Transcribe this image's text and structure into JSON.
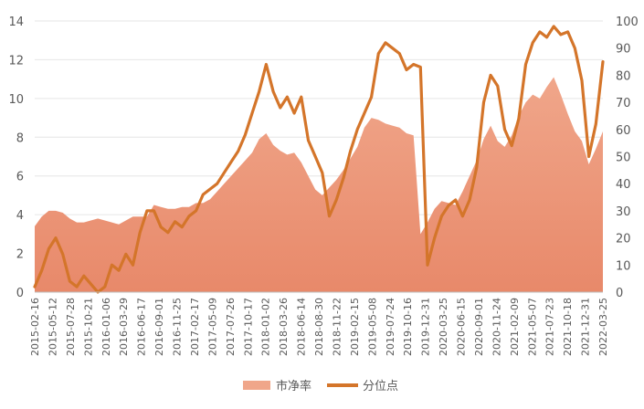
{
  "chart_data": {
    "type": "area",
    "title": "",
    "xlabel": "",
    "ylabel": "",
    "x_ticks": [
      "2015-02-16",
      "2015-05-12",
      "2015-07-28",
      "2015-10-21",
      "2016-01-06",
      "2016-03-29",
      "2016-06-17",
      "2016-09-01",
      "2016-11-25",
      "2017-02-17",
      "2017-05-09",
      "2017-07-26",
      "2017-10-17",
      "2018-01-02",
      "2018-03-26",
      "2018-06-14",
      "2018-08-30",
      "2018-11-22",
      "2019-02-15",
      "2019-05-08",
      "2019-07-24",
      "2019-10-16",
      "2019-12-31",
      "2020-03-25",
      "2020-06-15",
      "2020-09-01",
      "2020-11-24",
      "2021-02-09",
      "2021-05-07",
      "2021-07-23",
      "2021-10-18",
      "2021-12-31",
      "2022-03-25"
    ],
    "y_left": {
      "ticks": [
        0,
        2,
        4,
        6,
        8,
        10,
        12,
        14
      ],
      "lim": [
        0,
        14
      ]
    },
    "y_right": {
      "ticks": [
        0,
        10,
        20,
        30,
        40,
        50,
        60,
        70,
        80,
        90,
        100
      ],
      "lim": [
        0,
        100
      ]
    },
    "grid": true,
    "legend_position": "bottom",
    "series": [
      {
        "name": "市净率",
        "kind": "area",
        "axis": "left",
        "color": "#F0A68A",
        "values": [
          3.4,
          3.9,
          4.2,
          4.2,
          4.1,
          3.8,
          3.6,
          3.6,
          3.7,
          3.8,
          3.7,
          3.6,
          3.5,
          3.7,
          3.9,
          3.9,
          3.9,
          4.5,
          4.4,
          4.3,
          4.3,
          4.4,
          4.4,
          4.6,
          4.6,
          4.8,
          5.2,
          5.6,
          6.0,
          6.4,
          6.8,
          7.2,
          7.9,
          8.2,
          7.6,
          7.3,
          7.1,
          7.2,
          6.7,
          6.0,
          5.3,
          5.0,
          5.4,
          5.8,
          6.3,
          6.9,
          7.5,
          8.5,
          9.0,
          8.9,
          8.7,
          8.6,
          8.5,
          8.2,
          8.1,
          3.0,
          3.6,
          4.3,
          4.7,
          4.6,
          4.5,
          5.2,
          6.0,
          6.8,
          7.9,
          8.6,
          7.8,
          7.5,
          8.1,
          9.1,
          9.8,
          10.2,
          10.0,
          10.6,
          11.1,
          10.2,
          9.2,
          8.3,
          7.8,
          6.6,
          7.4,
          8.3
        ]
      },
      {
        "name": "分位点",
        "kind": "line",
        "axis": "right",
        "color": "#D4752A",
        "values": [
          2,
          8,
          16,
          20,
          14,
          4,
          2,
          6,
          3,
          0,
          2,
          10,
          8,
          14,
          10,
          22,
          30,
          30,
          24,
          22,
          26,
          24,
          28,
          30,
          36,
          38,
          40,
          44,
          48,
          52,
          58,
          66,
          74,
          84,
          74,
          68,
          72,
          66,
          72,
          56,
          50,
          44,
          28,
          34,
          42,
          52,
          60,
          66,
          72,
          88,
          92,
          90,
          88,
          82,
          84,
          83,
          10,
          20,
          28,
          32,
          34,
          28,
          34,
          46,
          70,
          80,
          76,
          60,
          54,
          64,
          84,
          92,
          96,
          94,
          98,
          95,
          96,
          90,
          78,
          50,
          62,
          85
        ]
      }
    ]
  }
}
